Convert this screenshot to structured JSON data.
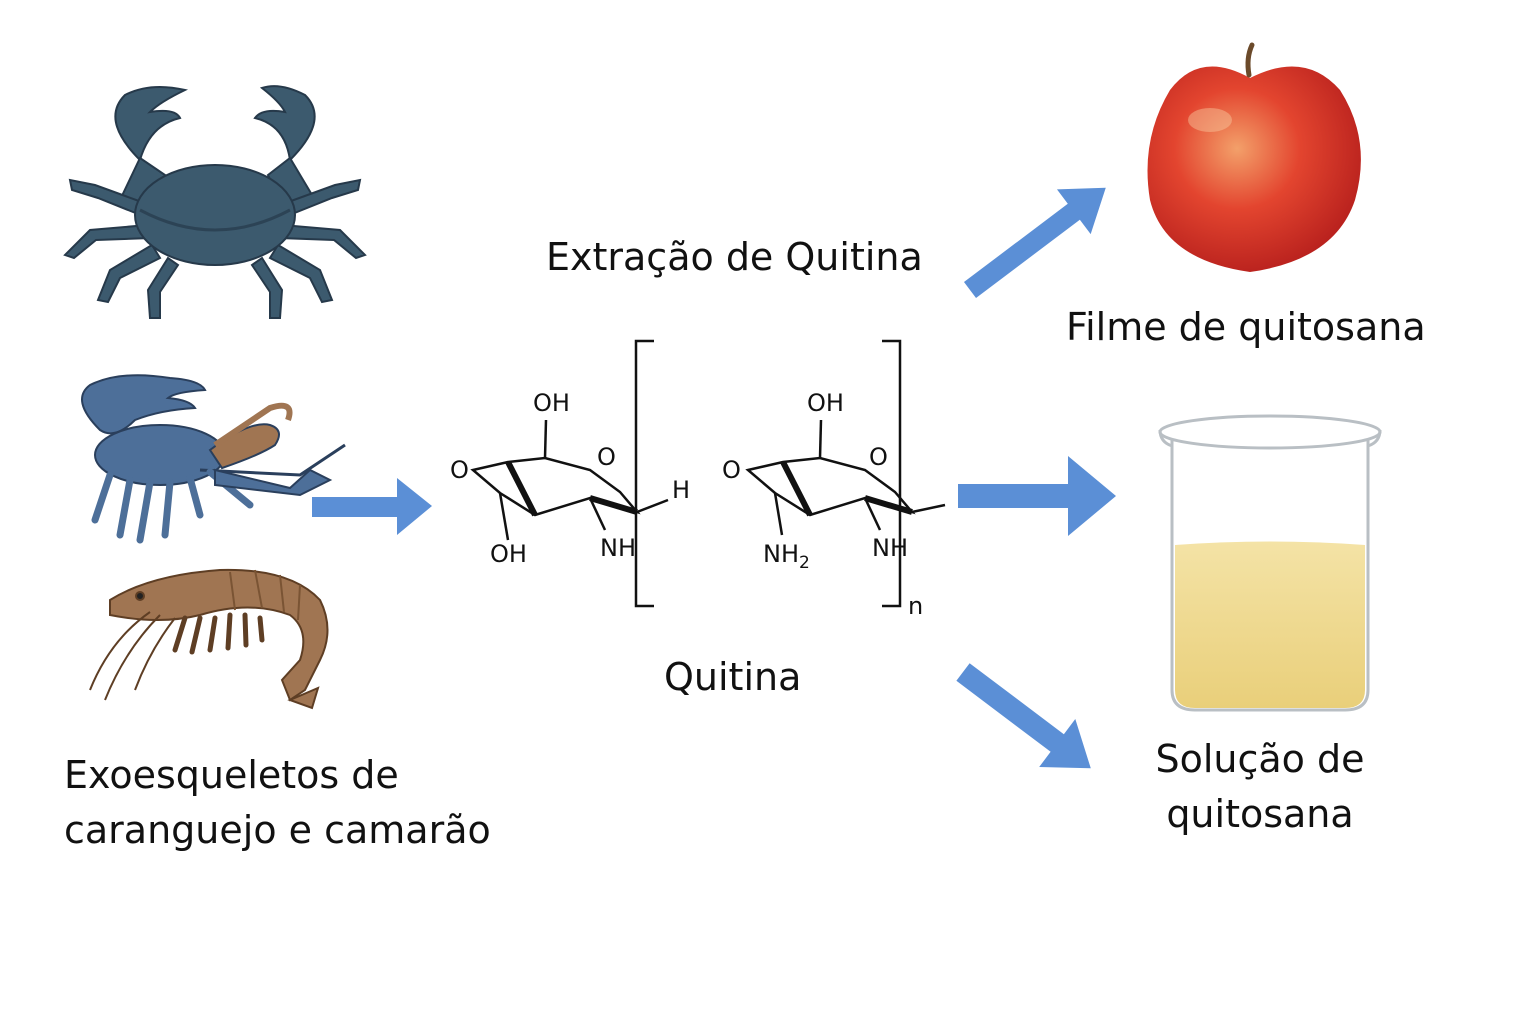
{
  "labels": {
    "extraction": "Extração de Quitina",
    "chitin": "Quitina",
    "film": "Filme de quitosana",
    "solution_line1": "Solução de",
    "solution_line2": "quitosana",
    "exo_line1": "Exoesqueletos de",
    "exo_line2": "caranguejo e camarão"
  },
  "structure": {
    "oh_top_1": "OH",
    "oh_bottom_1": "OH",
    "o_left_1": "O",
    "o_ring_1": "O",
    "nh_1": "NH",
    "h_end": "H",
    "oh_top_2": "OH",
    "o_left_2": "O",
    "o_ring_2": "O",
    "nh2": "NH",
    "nh2_sub": "2",
    "nh_2": "NH",
    "repeat_n": "n"
  },
  "icons": [
    "crab-icon",
    "crayfish-icon",
    "shrimp-icon",
    "apple-icon",
    "beaker-icon"
  ],
  "colors": {
    "arrow": "#5b8fd6",
    "crab": "#3c5a6e",
    "crayfish": "#4d6f99",
    "shrimp": "#a07552",
    "apple": "#d8302a",
    "liquid": "#f0d98a"
  }
}
